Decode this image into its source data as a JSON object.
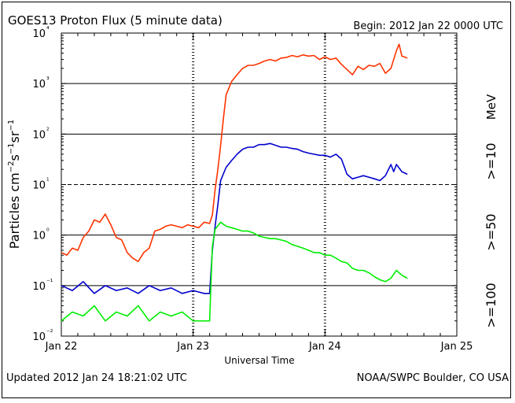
{
  "header": {
    "title": "GOES13 Proton Flux (5 minute data)",
    "begin": "Begin: 2012 Jan 22 0000 UTC"
  },
  "footer": {
    "updated": "Updated 2012 Jan 24 18:21:02 UTC",
    "credit": "NOAA/SWPC Boulder, CO USA"
  },
  "chart_data": {
    "type": "line",
    "title": "GOES13 Proton Flux (5 minute data)",
    "xlabel": "Universal Time",
    "ylabel": "Particles cm⁻²s⁻¹sr⁻¹",
    "yscale": "log",
    "ylim": [
      0.01,
      10000
    ],
    "xlim_hours": [
      0,
      72
    ],
    "x_tick_labels": [
      "Jan 22",
      "Jan 23",
      "Jan 24",
      "Jan 25"
    ],
    "y_tick_labels": [
      "10⁻²",
      "10⁻¹",
      "10⁰",
      "10¹",
      "10²",
      "10³",
      "10⁴"
    ],
    "grid": "horizontal lines at each decade (dashed at 10¹), dotted day separators",
    "legend_placement": "right",
    "series": [
      {
        "name": ">=10 MeV",
        "color": "#ff3300",
        "points": [
          [
            0,
            0.45
          ],
          [
            1,
            0.4
          ],
          [
            2,
            0.55
          ],
          [
            3,
            0.5
          ],
          [
            4,
            0.9
          ],
          [
            5,
            1.2
          ],
          [
            6,
            2.0
          ],
          [
            7,
            1.8
          ],
          [
            8,
            2.6
          ],
          [
            9,
            1.6
          ],
          [
            10,
            0.9
          ],
          [
            11,
            0.8
          ],
          [
            12,
            0.45
          ],
          [
            13,
            0.35
          ],
          [
            14,
            0.3
          ],
          [
            15,
            0.45
          ],
          [
            16,
            0.55
          ],
          [
            17,
            1.2
          ],
          [
            18,
            1.3
          ],
          [
            19,
            1.5
          ],
          [
            20,
            1.6
          ],
          [
            21,
            1.5
          ],
          [
            22,
            1.4
          ],
          [
            23,
            1.6
          ],
          [
            24,
            1.5
          ],
          [
            25,
            1.4
          ],
          [
            26,
            1.8
          ],
          [
            27,
            1.7
          ],
          [
            27.5,
            2.5
          ],
          [
            28,
            8
          ],
          [
            28.5,
            20
          ],
          [
            29,
            60
          ],
          [
            29.5,
            200
          ],
          [
            30,
            600
          ],
          [
            31,
            1100
          ],
          [
            32,
            1500
          ],
          [
            33,
            2000
          ],
          [
            34,
            2300
          ],
          [
            35,
            2300
          ],
          [
            36,
            2500
          ],
          [
            37,
            2800
          ],
          [
            38,
            3000
          ],
          [
            39,
            2800
          ],
          [
            40,
            3200
          ],
          [
            41,
            3300
          ],
          [
            42,
            3600
          ],
          [
            43,
            3400
          ],
          [
            44,
            3700
          ],
          [
            45,
            3500
          ],
          [
            46,
            3600
          ],
          [
            47,
            3000
          ],
          [
            48,
            3400
          ],
          [
            49,
            3000
          ],
          [
            50,
            3200
          ],
          [
            51,
            2400
          ],
          [
            52,
            1900
          ],
          [
            53,
            1500
          ],
          [
            54,
            2200
          ],
          [
            55,
            1900
          ],
          [
            56,
            2300
          ],
          [
            57,
            2200
          ],
          [
            58,
            2500
          ],
          [
            59,
            1600
          ],
          [
            60,
            2000
          ],
          [
            61,
            4500
          ],
          [
            61.5,
            6000
          ],
          [
            62,
            3500
          ],
          [
            63,
            3200
          ]
        ]
      },
      {
        "name": ">=50 MeV",
        "color": "#0000cc",
        "points": [
          [
            0,
            0.1
          ],
          [
            2,
            0.08
          ],
          [
            4,
            0.12
          ],
          [
            6,
            0.07
          ],
          [
            8,
            0.1
          ],
          [
            10,
            0.08
          ],
          [
            12,
            0.09
          ],
          [
            14,
            0.07
          ],
          [
            16,
            0.1
          ],
          [
            18,
            0.08
          ],
          [
            20,
            0.09
          ],
          [
            22,
            0.07
          ],
          [
            24,
            0.08
          ],
          [
            26,
            0.07
          ],
          [
            27,
            0.07
          ],
          [
            27.5,
            0.5
          ],
          [
            28,
            1.5
          ],
          [
            28.5,
            4
          ],
          [
            29,
            12
          ],
          [
            30,
            22
          ],
          [
            31,
            30
          ],
          [
            32,
            40
          ],
          [
            33,
            50
          ],
          [
            34,
            55
          ],
          [
            35,
            55
          ],
          [
            36,
            62
          ],
          [
            37,
            62
          ],
          [
            38,
            65
          ],
          [
            39,
            60
          ],
          [
            40,
            55
          ],
          [
            41,
            55
          ],
          [
            42,
            52
          ],
          [
            43,
            50
          ],
          [
            44,
            45
          ],
          [
            45,
            42
          ],
          [
            46,
            40
          ],
          [
            47,
            38
          ],
          [
            48,
            38
          ],
          [
            49,
            35
          ],
          [
            50,
            40
          ],
          [
            51,
            32
          ],
          [
            52,
            16
          ],
          [
            53,
            13
          ],
          [
            54,
            14
          ],
          [
            55,
            15
          ],
          [
            56,
            14
          ],
          [
            57,
            13
          ],
          [
            58,
            12
          ],
          [
            59,
            15
          ],
          [
            60,
            25
          ],
          [
            60.5,
            18
          ],
          [
            61,
            25
          ],
          [
            62,
            18
          ],
          [
            63,
            16
          ]
        ]
      },
      {
        "name": ">=100 MeV",
        "color": "#00ee00",
        "points": [
          [
            0,
            0.02
          ],
          [
            2,
            0.03
          ],
          [
            4,
            0.025
          ],
          [
            6,
            0.04
          ],
          [
            8,
            0.02
          ],
          [
            10,
            0.03
          ],
          [
            12,
            0.025
          ],
          [
            14,
            0.04
          ],
          [
            16,
            0.02
          ],
          [
            18,
            0.03
          ],
          [
            20,
            0.025
          ],
          [
            22,
            0.03
          ],
          [
            24,
            0.02
          ],
          [
            26,
            0.02
          ],
          [
            27,
            0.02
          ],
          [
            27.5,
            0.6
          ],
          [
            28,
            1.3
          ],
          [
            29,
            1.8
          ],
          [
            30,
            1.5
          ],
          [
            31,
            1.4
          ],
          [
            32,
            1.3
          ],
          [
            33,
            1.2
          ],
          [
            34,
            1.2
          ],
          [
            35,
            1.1
          ],
          [
            36,
            0.95
          ],
          [
            37,
            0.9
          ],
          [
            38,
            0.85
          ],
          [
            39,
            0.85
          ],
          [
            40,
            0.8
          ],
          [
            41,
            0.75
          ],
          [
            42,
            0.65
          ],
          [
            43,
            0.6
          ],
          [
            44,
            0.55
          ],
          [
            45,
            0.5
          ],
          [
            46,
            0.45
          ],
          [
            47,
            0.45
          ],
          [
            48,
            0.4
          ],
          [
            49,
            0.4
          ],
          [
            50,
            0.35
          ],
          [
            51,
            0.3
          ],
          [
            52,
            0.28
          ],
          [
            53,
            0.22
          ],
          [
            54,
            0.2
          ],
          [
            55,
            0.2
          ],
          [
            56,
            0.18
          ],
          [
            57,
            0.15
          ],
          [
            58,
            0.13
          ],
          [
            59,
            0.12
          ],
          [
            60,
            0.14
          ],
          [
            61,
            0.2
          ],
          [
            62,
            0.16
          ],
          [
            63,
            0.14
          ]
        ]
      }
    ],
    "legend_labels": {
      "e10": ">=10",
      "unit": "MeV",
      "e50": ">=50",
      "e100": ">=100"
    }
  }
}
